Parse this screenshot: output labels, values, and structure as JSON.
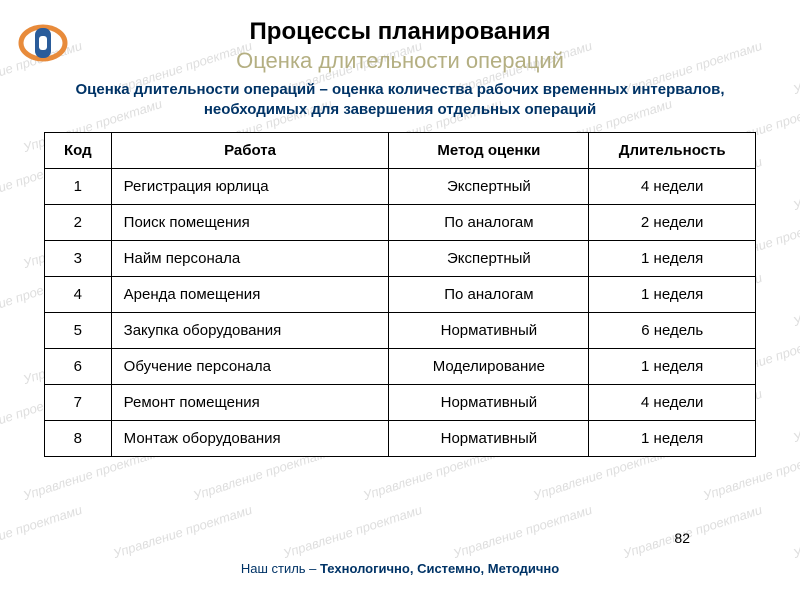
{
  "branding": {
    "logo_outer_color": "#e88b3b",
    "logo_inner_color": "#2a5c9a"
  },
  "title": "Процессы планирования",
  "subtitle": "Оценка длительности операций",
  "subtitle_color": "#b4af82",
  "description": "Оценка длительности операций – оценка количества рабочих временных интервалов, необходимых для завершения отдельных операций",
  "description_color": "#003366",
  "watermark_text": "Управление проектами",
  "watermark_color": "#d9d9d9",
  "table": {
    "headers": {
      "code": "Код",
      "work": "Работа",
      "method": "Метод оценки",
      "duration": "Длительность"
    },
    "rows": [
      {
        "code": "1",
        "work": "Регистрация юрлица",
        "method": "Экспертный",
        "duration": "4 недели"
      },
      {
        "code": "2",
        "work": "Поиск помещения",
        "method": "По аналогам",
        "duration": "2 недели"
      },
      {
        "code": "3",
        "work": "Найм персонала",
        "method": "Экспертный",
        "duration": "1 неделя"
      },
      {
        "code": "4",
        "work": "Аренда помещения",
        "method": "По аналогам",
        "duration": "1 неделя"
      },
      {
        "code": "5",
        "work": "Закупка оборудования",
        "method": "Нормативный",
        "duration": "6 недель"
      },
      {
        "code": "6",
        "work": "Обучение персонала",
        "method": "Моделирование",
        "duration": "1 неделя"
      },
      {
        "code": "7",
        "work": "Ремонт помещения",
        "method": "Нормативный",
        "duration": "4 недели"
      },
      {
        "code": "8",
        "work": "Монтаж оборудования",
        "method": "Нормативный",
        "duration": "1 неделя"
      }
    ],
    "border_color": "#000000",
    "font_size": 15
  },
  "footer": {
    "prefix": "Наш стиль – ",
    "bold": "Технологично, Системно, Методично",
    "color": "#003366"
  },
  "page_number": "82"
}
